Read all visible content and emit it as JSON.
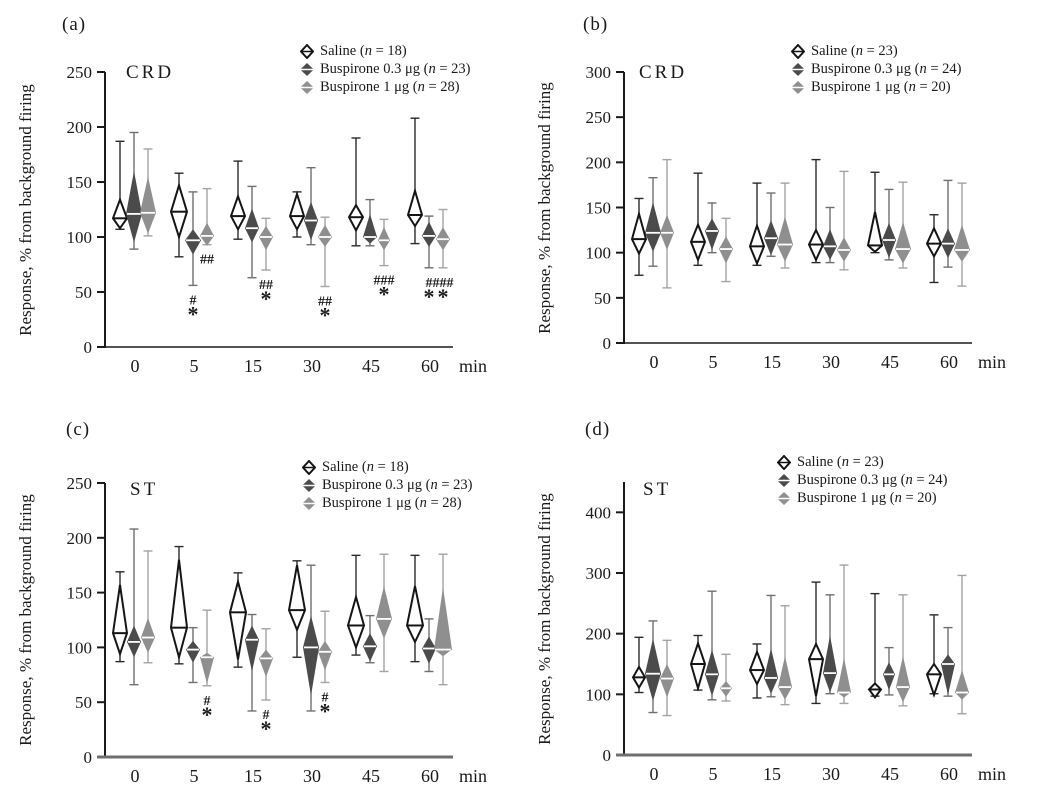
{
  "y_axis_label": "Response, % from background firing",
  "x_unit": "min",
  "x_categories": [
    "0",
    "5",
    "15",
    "30",
    "45",
    "60"
  ],
  "n_symbol": "n",
  "colors": {
    "background": "#ffffff",
    "axis": "#1a1a1a",
    "text": "#1a1a1a",
    "saline_fill": "#ffffff",
    "saline_stroke": "#151515",
    "buspirone03_fill": "#4b4b4b",
    "buspirone1_fill": "#8f8f8f",
    "median_on_filled": "#ffffff"
  },
  "series": [
    {
      "key": "saline",
      "label": "Saline",
      "fill": "#ffffff",
      "stroke": "#151515",
      "whisker": "#2a2a2a",
      "median": "#151515"
    },
    {
      "key": "buspirone_0_3ug",
      "label": "Buspirone 0.3 μg",
      "fill": "#4b4b4b",
      "stroke": "none",
      "whisker": "#6f6f6f",
      "median": "#ffffff"
    },
    {
      "key": "buspirone_1ug",
      "label": "Buspirone 1 μg",
      "fill": "#8f8f8f",
      "stroke": "none",
      "whisker": "#a3a3a3",
      "median": "#ffffff"
    }
  ],
  "chart_data": [
    {
      "type": "violin",
      "panel_label": "(a)",
      "region_label": "CRD",
      "ylim": [
        0,
        250
      ],
      "axis_top_value": 250,
      "yticks": [
        0,
        50,
        100,
        150,
        200,
        250
      ],
      "legend_n": [
        "18",
        "23",
        "28"
      ],
      "groups": [
        {
          "t": "0",
          "violins": [
            {
              "lo": 107,
              "hi": 187,
              "dlo": 108,
              "dhi": 134,
              "med": 117,
              "hw": 7
            },
            {
              "lo": 89,
              "hi": 195,
              "dlo": 95,
              "dhi": 160,
              "med": 121,
              "hw": 8
            },
            {
              "lo": 101,
              "hi": 180,
              "dlo": 103,
              "dhi": 155,
              "med": 122,
              "hw": 8
            }
          ]
        },
        {
          "t": "5",
          "violins": [
            {
              "lo": 82,
              "hi": 158,
              "dlo": 100,
              "dhi": 147,
              "med": 123,
              "hw": 8
            },
            {
              "lo": 56,
              "hi": 141,
              "dlo": 84,
              "dhi": 107,
              "med": 97,
              "hw": 8,
              "marks": [
                "#",
                "*"
              ]
            },
            {
              "lo": 93,
              "hi": 144,
              "dlo": 92,
              "dhi": 113,
              "med": 101,
              "hw": 7,
              "marks": [
                "##"
              ]
            }
          ]
        },
        {
          "t": "15",
          "violins": [
            {
              "lo": 98,
              "hi": 169,
              "dlo": 107,
              "dhi": 137,
              "med": 119,
              "hw": 7
            },
            {
              "lo": 63,
              "hi": 146,
              "dlo": 95,
              "dhi": 126,
              "med": 108,
              "hw": 7
            },
            {
              "lo": 70,
              "hi": 117,
              "dlo": 88,
              "dhi": 110,
              "med": 100,
              "hw": 7,
              "marks": [
                "##",
                "*"
              ]
            }
          ]
        },
        {
          "t": "30",
          "violins": [
            {
              "lo": 100,
              "hi": 141,
              "dlo": 107,
              "dhi": 139,
              "med": 119,
              "hw": 7
            },
            {
              "lo": 93,
              "hi": 163,
              "dlo": 97,
              "dhi": 132,
              "med": 115,
              "hw": 7
            },
            {
              "lo": 55,
              "hi": 118,
              "dlo": 91,
              "dhi": 111,
              "med": 100,
              "hw": 7,
              "marks": [
                "##",
                "*"
              ]
            }
          ]
        },
        {
          "t": "45",
          "violins": [
            {
              "lo": 92,
              "hi": 190,
              "dlo": 106,
              "dhi": 129,
              "med": 118,
              "hw": 7
            },
            {
              "lo": 92,
              "hi": 134,
              "dlo": 94,
              "dhi": 121,
              "med": 100,
              "hw": 7
            },
            {
              "lo": 74,
              "hi": 116,
              "dlo": 88,
              "dhi": 109,
              "med": 97,
              "hw": 6,
              "marks": [
                "###",
                "*"
              ]
            }
          ]
        },
        {
          "t": "60",
          "violins": [
            {
              "lo": 94,
              "hi": 208,
              "dlo": 110,
              "dhi": 142,
              "med": 120,
              "hw": 7
            },
            {
              "lo": 72,
              "hi": 119,
              "dlo": 91,
              "dhi": 114,
              "med": 101,
              "hw": 7,
              "marks": [
                "#",
                "*"
              ]
            },
            {
              "lo": 72,
              "hi": 125,
              "dlo": 88,
              "dhi": 109,
              "med": 98,
              "hw": 7,
              "marks": [
                "###",
                "*"
              ]
            }
          ]
        }
      ]
    },
    {
      "type": "violin",
      "panel_label": "(b)",
      "region_label": "CRD",
      "ylim": [
        0,
        300
      ],
      "axis_top_value": 300,
      "yticks": [
        0,
        50,
        100,
        150,
        200,
        250,
        300
      ],
      "legend_n": [
        "23",
        "24",
        "20"
      ],
      "groups": [
        {
          "t": "0",
          "violins": [
            {
              "lo": 75,
              "hi": 160,
              "dlo": 99,
              "dhi": 143,
              "med": 115,
              "hw": 7
            },
            {
              "lo": 85,
              "hi": 183,
              "dlo": 101,
              "dhi": 156,
              "med": 122,
              "hw": 8
            },
            {
              "lo": 61,
              "hi": 203,
              "dlo": 103,
              "dhi": 142,
              "med": 122,
              "hw": 7
            }
          ]
        },
        {
          "t": "5",
          "violins": [
            {
              "lo": 86,
              "hi": 188,
              "dlo": 92,
              "dhi": 131,
              "med": 112,
              "hw": 7
            },
            {
              "lo": 100,
              "hi": 155,
              "dlo": 103,
              "dhi": 138,
              "med": 124,
              "hw": 7
            },
            {
              "lo": 68,
              "hi": 138,
              "dlo": 88,
              "dhi": 118,
              "med": 104,
              "hw": 7
            }
          ]
        },
        {
          "t": "15",
          "violins": [
            {
              "lo": 86,
              "hi": 177,
              "dlo": 88,
              "dhi": 130,
              "med": 107,
              "hw": 7
            },
            {
              "lo": 96,
              "hi": 166,
              "dlo": 97,
              "dhi": 136,
              "med": 116,
              "hw": 7
            },
            {
              "lo": 83,
              "hi": 177,
              "dlo": 90,
              "dhi": 140,
              "med": 109,
              "hw": 8
            }
          ]
        },
        {
          "t": "30",
          "violins": [
            {
              "lo": 89,
              "hi": 203,
              "dlo": 92,
              "dhi": 125,
              "med": 109,
              "hw": 7
            },
            {
              "lo": 89,
              "hi": 150,
              "dlo": 92,
              "dhi": 126,
              "med": 107,
              "hw": 7
            },
            {
              "lo": 81,
              "hi": 190,
              "dlo": 90,
              "dhi": 117,
              "med": 103,
              "hw": 7
            }
          ]
        },
        {
          "t": "45",
          "violins": [
            {
              "lo": 100,
              "hi": 189,
              "dlo": 101,
              "dhi": 145,
              "med": 108,
              "hw": 7
            },
            {
              "lo": 92,
              "hi": 170,
              "dlo": 94,
              "dhi": 133,
              "med": 114,
              "hw": 7
            },
            {
              "lo": 83,
              "hi": 178,
              "dlo": 88,
              "dhi": 134,
              "med": 104,
              "hw": 8
            }
          ]
        },
        {
          "t": "60",
          "violins": [
            {
              "lo": 67,
              "hi": 142,
              "dlo": 96,
              "dhi": 127,
              "med": 110,
              "hw": 7
            },
            {
              "lo": 84,
              "hi": 180,
              "dlo": 94,
              "dhi": 127,
              "med": 110,
              "hw": 7
            },
            {
              "lo": 63,
              "hi": 177,
              "dlo": 90,
              "dhi": 131,
              "med": 103,
              "hw": 8
            }
          ]
        }
      ]
    },
    {
      "type": "violin",
      "panel_label": "(c)",
      "region_label": "ST",
      "ylim": [
        0,
        250
      ],
      "axis_top_value": 250,
      "yticks": [
        0,
        50,
        100,
        150,
        200,
        250
      ],
      "legend_n": [
        "18",
        "23",
        "28"
      ],
      "groups": [
        {
          "t": "0",
          "violins": [
            {
              "lo": 87,
              "hi": 169,
              "dlo": 94,
              "dhi": 157,
              "med": 113,
              "hw": 7
            },
            {
              "lo": 66,
              "hi": 208,
              "dlo": 91,
              "dhi": 120,
              "med": 105,
              "hw": 7
            },
            {
              "lo": 86,
              "hi": 188,
              "dlo": 95,
              "dhi": 127,
              "med": 109,
              "hw": 7
            }
          ]
        },
        {
          "t": "5",
          "violins": [
            {
              "lo": 85,
              "hi": 192,
              "dlo": 91,
              "dhi": 180,
              "med": 118,
              "hw": 8
            },
            {
              "lo": 68,
              "hi": 118,
              "dlo": 86,
              "dhi": 106,
              "med": 98,
              "hw": 7
            },
            {
              "lo": 65,
              "hi": 134,
              "dlo": 67,
              "dhi": 95,
              "med": 91,
              "hw": 7,
              "marks": [
                "#",
                "*"
              ]
            }
          ]
        },
        {
          "t": "15",
          "violins": [
            {
              "lo": 82,
              "hi": 168,
              "dlo": 89,
              "dhi": 160,
              "med": 132,
              "hw": 8
            },
            {
              "lo": 42,
              "hi": 130,
              "dlo": 78,
              "dhi": 120,
              "med": 107,
              "hw": 7
            },
            {
              "lo": 52,
              "hi": 117,
              "dlo": 73,
              "dhi": 98,
              "med": 90,
              "hw": 7,
              "marks": [
                "#",
                "*"
              ]
            }
          ]
        },
        {
          "t": "30",
          "violins": [
            {
              "lo": 91,
              "hi": 179,
              "dlo": 116,
              "dhi": 175,
              "med": 134,
              "hw": 8
            },
            {
              "lo": 42,
              "hi": 175,
              "dlo": 56,
              "dhi": 129,
              "med": 100,
              "hw": 8
            },
            {
              "lo": 68,
              "hi": 133,
              "dlo": 79,
              "dhi": 106,
              "med": 96,
              "hw": 7,
              "marks": [
                "#",
                "*"
              ]
            }
          ]
        },
        {
          "t": "45",
          "violins": [
            {
              "lo": 93,
              "hi": 184,
              "dlo": 100,
              "dhi": 146,
              "med": 120,
              "hw": 8
            },
            {
              "lo": 86,
              "hi": 129,
              "dlo": 87,
              "dhi": 113,
              "med": 101,
              "hw": 7
            },
            {
              "lo": 78,
              "hi": 185,
              "dlo": 108,
              "dhi": 156,
              "med": 126,
              "hw": 8
            }
          ]
        },
        {
          "t": "60",
          "violins": [
            {
              "lo": 87,
              "hi": 184,
              "dlo": 105,
              "dhi": 156,
              "med": 120,
              "hw": 8
            },
            {
              "lo": 78,
              "hi": 126,
              "dlo": 85,
              "dhi": 110,
              "med": 99,
              "hw": 7
            },
            {
              "lo": 66,
              "hi": 185,
              "dlo": 92,
              "dhi": 155,
              "med": 98,
              "hw": 9
            }
          ]
        }
      ]
    },
    {
      "type": "violin",
      "panel_label": "(d)",
      "region_label": "ST",
      "ylim": [
        0,
        400
      ],
      "axis_top_value": 450,
      "yticks": [
        0,
        100,
        200,
        300,
        400
      ],
      "legend_n": [
        "23",
        "24",
        "20"
      ],
      "groups": [
        {
          "t": "0",
          "violins": [
            {
              "lo": 103,
              "hi": 194,
              "dlo": 111,
              "dhi": 145,
              "med": 128,
              "hw": 6
            },
            {
              "lo": 70,
              "hi": 221,
              "dlo": 89,
              "dhi": 192,
              "med": 134,
              "hw": 8
            },
            {
              "lo": 65,
              "hi": 189,
              "dlo": 95,
              "dhi": 150,
              "med": 126,
              "hw": 7
            }
          ]
        },
        {
          "t": "5",
          "violins": [
            {
              "lo": 107,
              "hi": 197,
              "dlo": 110,
              "dhi": 184,
              "med": 150,
              "hw": 7
            },
            {
              "lo": 91,
              "hi": 270,
              "dlo": 97,
              "dhi": 174,
              "med": 133,
              "hw": 7
            },
            {
              "lo": 89,
              "hi": 166,
              "dlo": 96,
              "dhi": 122,
              "med": 110,
              "hw": 6
            }
          ]
        },
        {
          "t": "15",
          "violins": [
            {
              "lo": 94,
              "hi": 183,
              "dlo": 117,
              "dhi": 170,
              "med": 140,
              "hw": 7
            },
            {
              "lo": 96,
              "hi": 263,
              "dlo": 101,
              "dhi": 176,
              "med": 127,
              "hw": 7
            },
            {
              "lo": 83,
              "hi": 246,
              "dlo": 91,
              "dhi": 163,
              "med": 112,
              "hw": 7
            }
          ]
        },
        {
          "t": "30",
          "violins": [
            {
              "lo": 85,
              "hi": 285,
              "dlo": 97,
              "dhi": 183,
              "med": 158,
              "hw": 7
            },
            {
              "lo": 101,
              "hi": 264,
              "dlo": 103,
              "dhi": 197,
              "med": 135,
              "hw": 7
            },
            {
              "lo": 85,
              "hi": 313,
              "dlo": 95,
              "dhi": 160,
              "med": 103,
              "hw": 7
            }
          ]
        },
        {
          "t": "45",
          "violins": [
            {
              "lo": 97,
              "hi": 266,
              "dlo": 95,
              "dhi": 118,
              "med": 108,
              "hw": 6
            },
            {
              "lo": 99,
              "hi": 177,
              "dlo": 107,
              "dhi": 153,
              "med": 133,
              "hw": 6
            },
            {
              "lo": 81,
              "hi": 264,
              "dlo": 87,
              "dhi": 163,
              "med": 112,
              "hw": 7
            }
          ]
        },
        {
          "t": "60",
          "violins": [
            {
              "lo": 101,
              "hi": 231,
              "dlo": 99,
              "dhi": 150,
              "med": 133,
              "hw": 7
            },
            {
              "lo": 97,
              "hi": 210,
              "dlo": 99,
              "dhi": 166,
              "med": 150,
              "hw": 7
            },
            {
              "lo": 68,
              "hi": 296,
              "dlo": 91,
              "dhi": 140,
              "med": 103,
              "hw": 7
            }
          ]
        }
      ]
    }
  ]
}
